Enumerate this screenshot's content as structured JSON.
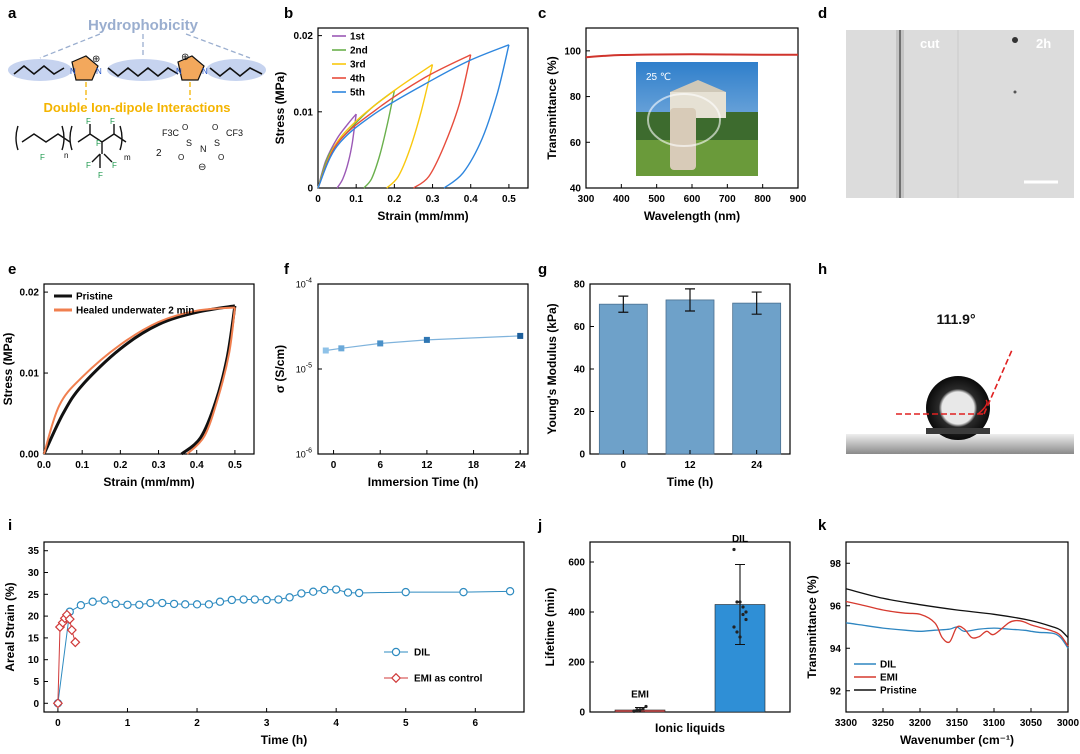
{
  "figure": {
    "panel_letters": [
      "a",
      "b",
      "c",
      "d",
      "e",
      "f",
      "g",
      "h",
      "i",
      "j",
      "k"
    ],
    "schematic_a": {
      "top_label": "Hydrophobicity",
      "bottom_label": "Double Ion-dipole Interactions",
      "subscript_n": "n",
      "subscript_m": "m",
      "atom_F": "F",
      "atom_N": "N",
      "atom_S": "S",
      "atom_O": "O",
      "group_CF3": "F3C",
      "group_CF3b": "CF3",
      "coefficient": "2",
      "charge_minus": "⊖",
      "charge_plus": "⊕",
      "colors": {
        "label_top": "#9aaecf",
        "label_bottom": "#f4b400",
        "blob": "#c6d3ef",
        "ring": "#f3a85c",
        "nitrogen": "#2a58c9",
        "fluorine": "#1f9a4f"
      }
    },
    "photo_c_overlay": {
      "label": "25 ℃"
    },
    "photo_d_overlay": {
      "left_label": "cut",
      "right_label": "2h"
    },
    "photo_h_overlay": {
      "angle_label": "111.9°"
    }
  },
  "chart_data": [
    {
      "id": "b",
      "type": "line",
      "xlabel": "Strain (mm/mm)",
      "ylabel": "Stress (MPa)",
      "xlim": [
        0,
        0.55
      ],
      "ylim": [
        0,
        0.021
      ],
      "xticks": [
        "0",
        "0.1",
        "0.2",
        "0.3",
        "0.4",
        "0.5"
      ],
      "xtick_values": [
        0,
        0.1,
        0.2,
        0.3,
        0.4,
        0.5
      ],
      "yticks": [
        "0",
        "0.01",
        "0.02"
      ],
      "ytick_values": [
        0,
        0.01,
        0.02
      ],
      "legend_position": "top-left",
      "series": [
        {
          "name": "1st",
          "color": "#9b59b6",
          "loading": [
            [
              0,
              0
            ],
            [
              0.02,
              0.0035
            ],
            [
              0.05,
              0.0065
            ],
            [
              0.08,
              0.0085
            ],
            [
              0.1,
              0.0097
            ]
          ],
          "unloading": [
            [
              0.1,
              0.0097
            ],
            [
              0.09,
              0.006
            ],
            [
              0.08,
              0.0035
            ],
            [
              0.065,
              0.0012
            ],
            [
              0.05,
              0
            ]
          ]
        },
        {
          "name": "2nd",
          "color": "#6ab04c",
          "loading": [
            [
              0,
              0
            ],
            [
              0.03,
              0.0045
            ],
            [
              0.08,
              0.0075
            ],
            [
              0.14,
              0.0105
            ],
            [
              0.2,
              0.0128
            ]
          ],
          "unloading": [
            [
              0.2,
              0.0128
            ],
            [
              0.18,
              0.008
            ],
            [
              0.16,
              0.004
            ],
            [
              0.14,
              0.0012
            ],
            [
              0.12,
              0
            ]
          ]
        },
        {
          "name": "3rd",
          "color": "#f9c80e",
          "loading": [
            [
              0,
              0
            ],
            [
              0.04,
              0.0052
            ],
            [
              0.1,
              0.0088
            ],
            [
              0.2,
              0.0128
            ],
            [
              0.3,
              0.0162
            ]
          ],
          "unloading": [
            [
              0.3,
              0.0162
            ],
            [
              0.27,
              0.01
            ],
            [
              0.24,
              0.005
            ],
            [
              0.21,
              0.0015
            ],
            [
              0.18,
              0
            ]
          ]
        },
        {
          "name": "4th",
          "color": "#e74c3c",
          "loading": [
            [
              0,
              0
            ],
            [
              0.05,
              0.0058
            ],
            [
              0.15,
              0.0102
            ],
            [
              0.28,
              0.0145
            ],
            [
              0.4,
              0.0175
            ]
          ],
          "unloading": [
            [
              0.4,
              0.0175
            ],
            [
              0.37,
              0.011
            ],
            [
              0.33,
              0.0055
            ],
            [
              0.29,
              0.0015
            ],
            [
              0.25,
              0
            ]
          ]
        },
        {
          "name": "5th",
          "color": "#2e86de",
          "loading": [
            [
              0,
              0
            ],
            [
              0.05,
              0.0055
            ],
            [
              0.15,
              0.0098
            ],
            [
              0.3,
              0.0142
            ],
            [
              0.4,
              0.0168
            ],
            [
              0.5,
              0.0188
            ]
          ],
          "unloading": [
            [
              0.5,
              0.0188
            ],
            [
              0.47,
              0.0125
            ],
            [
              0.43,
              0.0065
            ],
            [
              0.38,
              0.002
            ],
            [
              0.33,
              0
            ]
          ]
        }
      ]
    },
    {
      "id": "c",
      "type": "line",
      "xlabel": "Wavelength (nm)",
      "ylabel": "Transmittance (%)",
      "xlim": [
        300,
        900
      ],
      "ylim": [
        40,
        110
      ],
      "xticks": [
        "300",
        "400",
        "500",
        "600",
        "700",
        "800",
        "900"
      ],
      "xtick_values": [
        300,
        400,
        500,
        600,
        700,
        800,
        900
      ],
      "yticks": [
        "40",
        "60",
        "80",
        "100"
      ],
      "ytick_values": [
        40,
        60,
        80,
        100
      ],
      "series": [
        {
          "name": "transmittance",
          "color": "#d0342c",
          "x": [
            300,
            350,
            400,
            500,
            600,
            700,
            800,
            900
          ],
          "y": [
            97.2,
            97.8,
            98.2,
            98.4,
            98.5,
            98.4,
            98.3,
            98.3
          ]
        }
      ]
    },
    {
      "id": "e",
      "type": "line",
      "xlabel": "Strain (mm/mm)",
      "ylabel": "Stress (MPa)",
      "xlim": [
        0,
        0.55
      ],
      "ylim": [
        0,
        0.021
      ],
      "xticks": [
        "0.0",
        "0.1",
        "0.2",
        "0.3",
        "0.4",
        "0.5"
      ],
      "xtick_values": [
        0,
        0.1,
        0.2,
        0.3,
        0.4,
        0.5
      ],
      "yticks": [
        "0.00",
        "0.01",
        "0.02"
      ],
      "ytick_values": [
        0,
        0.01,
        0.02
      ],
      "legend_position": "top-left",
      "series": [
        {
          "name": "Pristine",
          "color": "#111111",
          "width": 3,
          "loading": [
            [
              0,
              0
            ],
            [
              0.05,
              0.005
            ],
            [
              0.1,
              0.0085
            ],
            [
              0.2,
              0.013
            ],
            [
              0.3,
              0.016
            ],
            [
              0.4,
              0.0175
            ],
            [
              0.5,
              0.0183
            ]
          ],
          "unloading": [
            [
              0.5,
              0.0183
            ],
            [
              0.48,
              0.012
            ],
            [
              0.45,
              0.0065
            ],
            [
              0.41,
              0.002
            ],
            [
              0.36,
              0
            ]
          ]
        },
        {
          "name": "Healed underwater 2 min",
          "color": "#f07f4f",
          "width": 2,
          "loading": [
            [
              0,
              0
            ],
            [
              0.04,
              0.006
            ],
            [
              0.1,
              0.0095
            ],
            [
              0.2,
              0.0135
            ],
            [
              0.3,
              0.0163
            ],
            [
              0.4,
              0.0177
            ],
            [
              0.5,
              0.0181
            ]
          ],
          "unloading": [
            [
              0.5,
              0.0181
            ],
            [
              0.485,
              0.0125
            ],
            [
              0.455,
              0.0068
            ],
            [
              0.42,
              0.0022
            ],
            [
              0.375,
              0
            ]
          ]
        }
      ]
    },
    {
      "id": "f",
      "type": "scatter",
      "xlabel": "Immersion Time (h)",
      "ylabel": "σ (S/cm)",
      "xlim": [
        -2,
        25
      ],
      "ylim_log": [
        -6,
        -4
      ],
      "xticks": [
        "0",
        "6",
        "12",
        "18",
        "24"
      ],
      "xtick_values": [
        0,
        6,
        12,
        18,
        24
      ],
      "ytick_values": [
        -4,
        -5,
        -6
      ],
      "series": [
        {
          "name": "conductivity",
          "color": "#4a90c8",
          "x": [
            -1,
            1,
            6,
            12,
            24
          ],
          "y": [
            1.65e-05,
            1.75e-05,
            2e-05,
            2.2e-05,
            2.45e-05
          ]
        }
      ]
    },
    {
      "id": "g",
      "type": "bar",
      "xlabel": "Time (h)",
      "ylabel": "Young's Modulus (kPa)",
      "categories": [
        "0",
        "12",
        "24"
      ],
      "values": [
        70.5,
        72.5,
        71.0
      ],
      "errors": [
        3.8,
        5.2,
        5.2
      ],
      "ylim": [
        0,
        80
      ],
      "yticks": [
        "0",
        "20",
        "40",
        "60",
        "80"
      ],
      "ytick_values": [
        0,
        20,
        40,
        60,
        80
      ],
      "color": "#6ea1c9"
    },
    {
      "id": "i",
      "type": "line",
      "xlabel": "Time (h)",
      "ylabel": "Areal Strain (%)",
      "xlim": [
        -0.2,
        6.7
      ],
      "ylim": [
        -2,
        37
      ],
      "xticks": [
        "0",
        "1",
        "2",
        "3",
        "4",
        "5",
        "6"
      ],
      "xtick_values": [
        0,
        1,
        2,
        3,
        4,
        5,
        6
      ],
      "yticks": [
        "0",
        "5",
        "10",
        "15",
        "20",
        "25",
        "30",
        "35"
      ],
      "ytick_values": [
        0,
        5,
        10,
        15,
        20,
        25,
        30,
        35
      ],
      "legend_position": "bottom-right",
      "series": [
        {
          "name": "DIL",
          "color": "#2e8bc0",
          "marker": "circle",
          "x": [
            0,
            0.17,
            0.33,
            0.5,
            0.67,
            0.83,
            1.0,
            1.17,
            1.33,
            1.5,
            1.67,
            1.83,
            2.0,
            2.17,
            2.33,
            2.5,
            2.67,
            2.83,
            3.0,
            3.17,
            3.33,
            3.5,
            3.67,
            3.83,
            4.0,
            4.17,
            4.33,
            5.0,
            5.83,
            6.5
          ],
          "y": [
            0,
            21,
            22.5,
            23.3,
            23.6,
            22.8,
            22.6,
            22.6,
            23.0,
            23.0,
            22.8,
            22.7,
            22.7,
            22.7,
            23.3,
            23.7,
            23.8,
            23.8,
            23.7,
            23.8,
            24.3,
            25.2,
            25.6,
            26.0,
            26.1,
            25.4,
            25.3,
            25.5,
            25.5,
            25.7
          ]
        },
        {
          "name": "EMI as control",
          "color": "#d03a3a",
          "marker": "diamond",
          "x": [
            0,
            0.03,
            0.07,
            0.1,
            0.13,
            0.17,
            0.2,
            0.25
          ],
          "y": [
            0,
            17.5,
            18.5,
            19.5,
            20.3,
            19.3,
            16.8,
            14
          ]
        }
      ]
    },
    {
      "id": "j",
      "type": "bar",
      "xlabel": "Ionic liquids",
      "ylabel": "Lifetime (min)",
      "categories": [
        "EMI",
        "DIL"
      ],
      "values": [
        8,
        430
      ],
      "errors": [
        10,
        160
      ],
      "ylim": [
        0,
        680
      ],
      "yticks": [
        "0",
        "200",
        "400",
        "600"
      ],
      "ytick_values": [
        0,
        200,
        400,
        600
      ],
      "color": "#2f8fd6",
      "points": [
        {
          "category": "EMI",
          "y": [
            4,
            6,
            8,
            12,
            22,
            3,
            9
          ]
        },
        {
          "category": "DIL",
          "y": [
            650,
            440,
            440,
            390,
            370,
            340,
            320,
            300,
            420,
            400
          ]
        }
      ]
    },
    {
      "id": "k",
      "type": "line",
      "xlabel": "Wavenumber (cm⁻¹)",
      "ylabel": "Transmittance (%)",
      "xlim_reversed": [
        3300,
        3000
      ],
      "ylim": [
        91,
        99
      ],
      "xticks": [
        "3300",
        "3250",
        "3200",
        "3150",
        "3100",
        "3050",
        "3000"
      ],
      "xtick_values": [
        3300,
        3250,
        3200,
        3150,
        3100,
        3050,
        3000
      ],
      "yticks": [
        "92",
        "94",
        "96",
        "98"
      ],
      "ytick_values": [
        92,
        94,
        96,
        98
      ],
      "legend_position": "bottom-left",
      "series": [
        {
          "name": "DIL",
          "color": "#2e86c1",
          "x": [
            3300,
            3280,
            3250,
            3220,
            3200,
            3180,
            3160,
            3150,
            3140,
            3120,
            3100,
            3080,
            3060,
            3050,
            3040,
            3020,
            3010,
            3000
          ],
          "y": [
            95.2,
            95.1,
            94.95,
            94.85,
            94.8,
            94.85,
            94.9,
            95.0,
            94.8,
            94.9,
            94.95,
            94.9,
            94.85,
            94.8,
            94.75,
            94.7,
            94.5,
            94.0
          ]
        },
        {
          "name": "EMI",
          "color": "#d63a2f",
          "x": [
            3300,
            3280,
            3250,
            3220,
            3200,
            3180,
            3170,
            3160,
            3150,
            3140,
            3130,
            3120,
            3110,
            3100,
            3080,
            3070,
            3060,
            3050,
            3040,
            3020,
            3010,
            3000
          ],
          "y": [
            96.2,
            96.05,
            95.8,
            95.65,
            95.6,
            95.2,
            94.5,
            94.3,
            95.0,
            94.9,
            94.5,
            94.55,
            94.8,
            94.65,
            95.2,
            95.3,
            95.25,
            95.1,
            95.0,
            94.8,
            94.6,
            94.1
          ]
        },
        {
          "name": "Pristine",
          "color": "#111111",
          "x": [
            3300,
            3250,
            3200,
            3150,
            3100,
            3050,
            3020,
            3010,
            3000
          ],
          "y": [
            96.8,
            96.35,
            96.05,
            95.8,
            95.6,
            95.3,
            95.0,
            94.85,
            94.5
          ]
        }
      ]
    }
  ]
}
